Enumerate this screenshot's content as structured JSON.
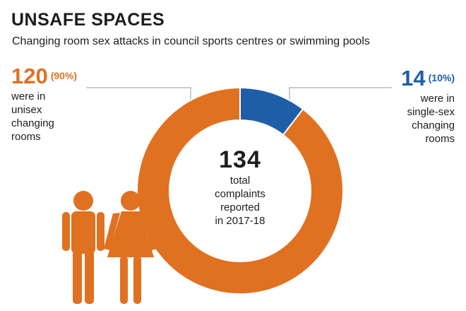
{
  "title": "UNSAFE SPACES",
  "subtitle": "Changing room sex attacks in council sports centres or swimming pools",
  "colors": {
    "unisex": "#e07120",
    "single_sex": "#1e5ea8",
    "text": "#1d1d1b"
  },
  "callouts": {
    "left": {
      "number": "120",
      "percent": "(90%)",
      "lines": [
        "were in",
        "unisex",
        "changing",
        "rooms"
      ]
    },
    "right": {
      "number": "14",
      "percent": "(10%)",
      "lines": [
        "were in",
        "single-sex",
        "changing",
        "rooms"
      ]
    }
  },
  "center": {
    "total": "134",
    "lines": [
      "total",
      "complaints",
      "reported",
      "in 2017-18"
    ]
  },
  "icons": [
    "male-figure-icon",
    "female-figure-icon"
  ],
  "chart_data": {
    "type": "pie",
    "donut": true,
    "total": 134,
    "slices": [
      {
        "label": "unisex changing rooms",
        "value": 120,
        "percent": 90,
        "color": "#e07120"
      },
      {
        "label": "single-sex changing rooms",
        "value": 14,
        "percent": 10,
        "color": "#1e5ea8"
      }
    ],
    "title": "UNSAFE SPACES",
    "subtitle": "Changing room sex attacks in council sports centres or swimming pools"
  }
}
